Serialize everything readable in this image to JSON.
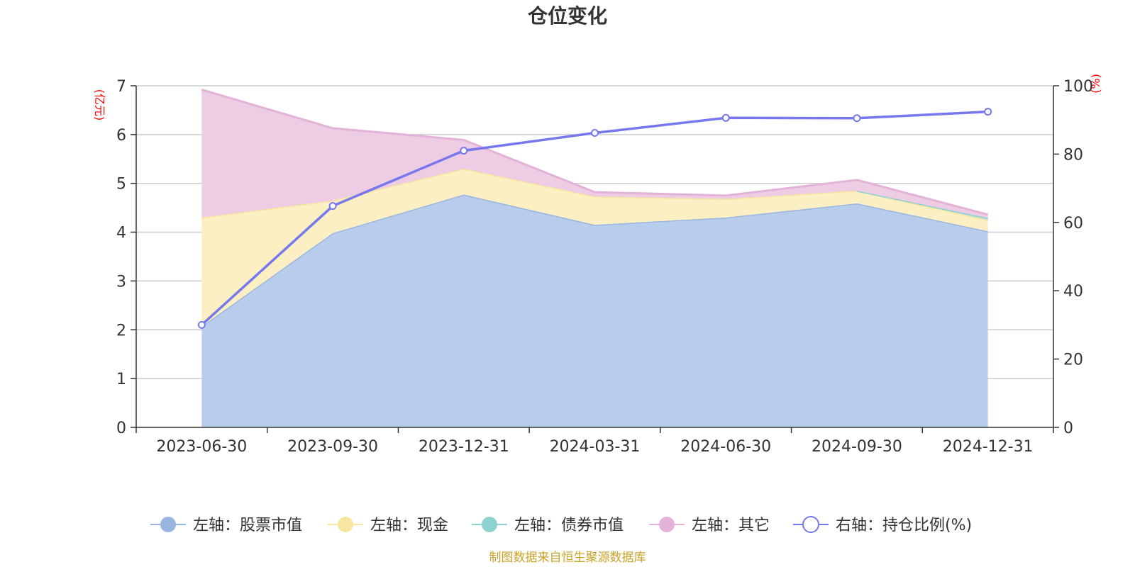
{
  "chart_data": {
    "type": "area",
    "title": "仓位变化",
    "categories": [
      "2023-06-30",
      "2023-09-30",
      "2023-12-31",
      "2024-03-31",
      "2024-06-30",
      "2024-09-30",
      "2024-12-31"
    ],
    "y_left": {
      "unit": "(亿元)",
      "min": 0,
      "max": 7,
      "ticks": [
        0,
        1,
        2,
        3,
        4,
        5,
        6,
        7
      ]
    },
    "y_right": {
      "unit": "(%)",
      "min": 0,
      "max": 100,
      "ticks": [
        0,
        20,
        40,
        60,
        80,
        100
      ]
    },
    "series": [
      {
        "name": "左轴：股票市值",
        "axis": "left",
        "stacked": true,
        "color": "#9ab6e0",
        "fill": "#b8cceb",
        "values": [
          2.07,
          3.98,
          4.77,
          4.15,
          4.3,
          4.59,
          4.02
        ]
      },
      {
        "name": "左轴：现金",
        "axis": "left",
        "stacked": true,
        "color": "#f7e6a0",
        "fill": "#fbefc3",
        "values": [
          2.23,
          0.67,
          0.53,
          0.58,
          0.38,
          0.26,
          0.23
        ]
      },
      {
        "name": "左轴：债券市值",
        "axis": "left",
        "stacked": true,
        "color": "#8fd1d1",
        "fill": "#b7e2e2",
        "values": [
          null,
          null,
          null,
          null,
          null,
          0.0,
          0.04
        ]
      },
      {
        "name": "左轴：其它",
        "axis": "left",
        "stacked": true,
        "color": "#e3b2d8",
        "fill": "#eecce4",
        "values": [
          2.62,
          1.48,
          0.59,
          0.09,
          0.07,
          0.22,
          0.07
        ]
      },
      {
        "name": "右轴：持仓比例(%)",
        "axis": "right",
        "type": "line",
        "color": "#7777ee",
        "values": [
          30.0,
          64.8,
          81.0,
          86.2,
          90.6,
          90.5,
          92.4
        ]
      }
    ],
    "legend_position": "bottom"
  },
  "footer": {
    "source": "制图数据来自恒生聚源数据库"
  }
}
